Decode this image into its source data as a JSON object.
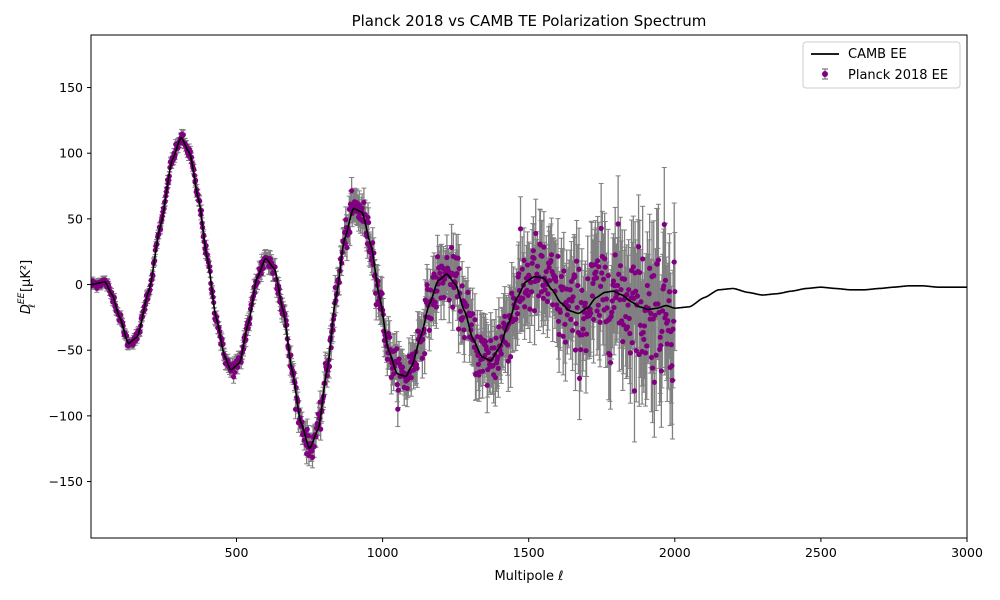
{
  "chart_data": {
    "type": "scatter",
    "title": "Planck 2018 vs CAMB TE Polarization Spectrum",
    "xlabel": "Multipole ℓ",
    "ylabel_main": "D",
    "ylabel_sub": "ℓ",
    "ylabel_sup": "EE",
    "ylabel_units": "[μK²]",
    "xlim": [
      2,
      3000
    ],
    "ylim": [
      -193,
      190
    ],
    "xticks": [
      500,
      1000,
      1500,
      2000,
      2500,
      3000
    ],
    "xtick_labels": [
      "500",
      "1000",
      "1500",
      "2000",
      "2500",
      "3000"
    ],
    "yticks": [
      -150,
      -100,
      -50,
      0,
      50,
      100,
      150
    ],
    "ytick_labels": [
      "−150",
      "−100",
      "−50",
      "0",
      "50",
      "100",
      "150"
    ],
    "grid": false,
    "legend_position": "top-right",
    "series": [
      {
        "name": "CAMB EE",
        "kind": "line",
        "color": "#000000",
        "x": [
          2,
          50,
          75,
          100,
          130,
          160,
          200,
          240,
          280,
          310,
          340,
          370,
          400,
          430,
          460,
          480,
          510,
          540,
          570,
          600,
          630,
          660,
          690,
          720,
          750,
          780,
          810,
          840,
          870,
          900,
          930,
          960,
          990,
          1020,
          1050,
          1080,
          1100,
          1130,
          1160,
          1190,
          1220,
          1250,
          1280,
          1310,
          1340,
          1370,
          1400,
          1430,
          1460,
          1490,
          1520,
          1550,
          1580,
          1610,
          1640,
          1670,
          1700,
          1730,
          1760,
          1790,
          1820,
          1850,
          1880,
          1910,
          1940,
          1970,
          2000,
          2050,
          2100,
          2150,
          2200,
          2250,
          2300,
          2350,
          2400,
          2450,
          2500,
          2550,
          2600,
          2650,
          2700,
          2750,
          2800,
          2850,
          2900,
          2950,
          3000
        ],
        "y": [
          0,
          2,
          -8,
          -25,
          -45,
          -40,
          -5,
          45,
          95,
          112,
          100,
          65,
          20,
          -25,
          -55,
          -65,
          -60,
          -30,
          5,
          20,
          12,
          -20,
          -65,
          -105,
          -125,
          -110,
          -65,
          -10,
          35,
          58,
          55,
          30,
          -10,
          -50,
          -68,
          -70,
          -62,
          -40,
          -15,
          3,
          8,
          0,
          -20,
          -42,
          -55,
          -58,
          -48,
          -30,
          -10,
          2,
          6,
          5,
          -4,
          -14,
          -20,
          -22,
          -18,
          -10,
          -6,
          -5,
          -8,
          -13,
          -17,
          -19,
          -18,
          -16,
          -18,
          -17,
          -10,
          -4,
          -3,
          -6,
          -8,
          -7,
          -5,
          -3,
          -2,
          -3,
          -4,
          -4,
          -3,
          -2,
          -1,
          -1,
          -2,
          -2,
          -2
        ]
      },
      {
        "name": "Planck 2018 EE",
        "kind": "errorbar-scatter",
        "color": "#800080",
        "error_color": "#808080",
        "x_range": [
          2,
          2000
        ],
        "points": 1000,
        "approx_error_range": [
          3,
          45
        ],
        "note_values": "noisy samples around CAMB EE curve"
      }
    ]
  }
}
